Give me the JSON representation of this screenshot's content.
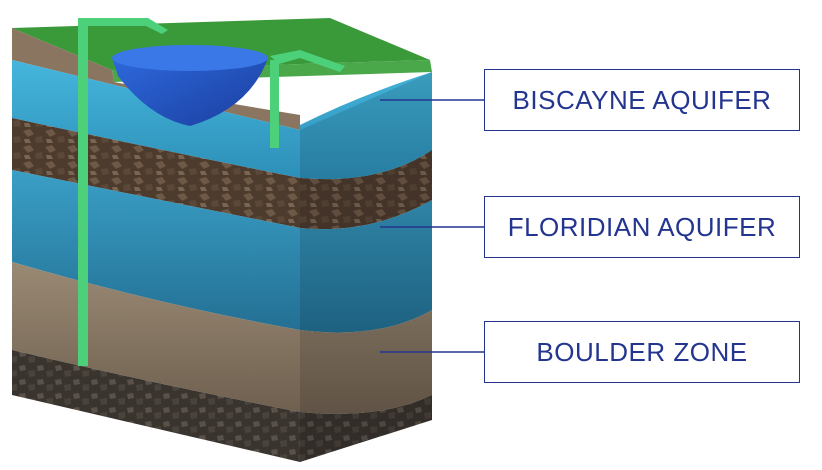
{
  "labels": {
    "biscayne": "BISCAYNE AQUIFER",
    "floridian": "FLORIDIAN AQUIFER",
    "boulder": "BOULDER ZONE"
  },
  "colors": {
    "label_border": "#23358f",
    "label_text": "#23358f",
    "grass": "#3a9a3a",
    "water": "#3ba8cf",
    "rock": "#5e4a3a",
    "boulder": "#8a7a66",
    "pipe": "#4cd17a",
    "reservoir": "#1f4fc4"
  }
}
